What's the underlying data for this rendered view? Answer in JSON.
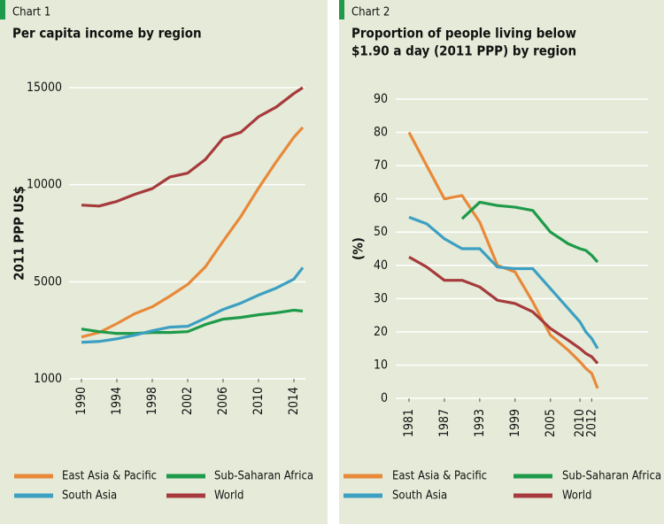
{
  "chart_data": [
    {
      "type": "line",
      "label": "Chart 1",
      "title": [
        "Per capita income by region"
      ],
      "ylabel": "2011 PPP US$",
      "x": [
        1990,
        1992,
        1994,
        1996,
        1998,
        2000,
        2002,
        2004,
        2006,
        2008,
        2010,
        2012,
        2014,
        2015
      ],
      "xlim": [
        1990,
        2015
      ],
      "xticks": [
        1990,
        1994,
        1998,
        2002,
        2006,
        2010,
        2014
      ],
      "ylim": [
        1000,
        15000
      ],
      "yticks": [
        1000,
        5000,
        10000,
        15000
      ],
      "grid": true,
      "series": [
        {
          "name": "East Asia & Pacific",
          "color": "#e8893a",
          "values": [
            2725,
            2910,
            3275,
            3680,
            3970,
            4410,
            4890,
            5770,
            7090,
            8360,
            9820,
            11180,
            12450,
            12950
          ]
        },
        {
          "name": "Sub-Saharan Africa",
          "color": "#1f9a4a",
          "values": [
            3055,
            2945,
            2870,
            2870,
            2910,
            2910,
            2945,
            3240,
            3460,
            3530,
            3640,
            3720,
            3830,
            3790
          ]
        },
        {
          "name": "South Asia",
          "color": "#3d9fc2",
          "values": [
            2505,
            2540,
            2650,
            2800,
            2980,
            3130,
            3165,
            3500,
            3860,
            4120,
            4450,
            4740,
            5140,
            5730
          ]
        },
        {
          "name": "World",
          "color": "#a63a3c",
          "values": [
            8950,
            8900,
            9140,
            9500,
            9800,
            10400,
            10600,
            11300,
            12400,
            12700,
            13500,
            14000,
            14700,
            15000
          ]
        }
      ]
    },
    {
      "type": "line",
      "label": "Chart 2",
      "title": [
        "Proportion of people living below",
        "$1.90 a day (2011 PPP) by region"
      ],
      "ylabel": "(%)",
      "x": [
        1981,
        1984,
        1987,
        1990,
        1993,
        1996,
        1999,
        2002,
        2005,
        2008,
        2010,
        2011,
        2012,
        2013
      ],
      "xlim": [
        1981,
        2013
      ],
      "xticks": [
        1981,
        1987,
        1993,
        1999,
        2005,
        2010,
        2012
      ],
      "ylim": [
        0,
        90
      ],
      "yticks": [
        0,
        10,
        20,
        30,
        40,
        50,
        60,
        70,
        80,
        90
      ],
      "grid": true,
      "series": [
        {
          "name": "East Asia & Pacific",
          "color": "#e8893a",
          "values": [
            80,
            70,
            60,
            61,
            53,
            40,
            38,
            29,
            19,
            14.5,
            11,
            9,
            7.5,
            3
          ]
        },
        {
          "name": "Sub-Saharan Africa",
          "color": "#1f9a4a",
          "values": [
            null,
            null,
            null,
            54,
            59,
            58,
            57.5,
            56.5,
            50,
            46.5,
            45,
            44.5,
            43,
            41
          ]
        },
        {
          "name": "South Asia",
          "color": "#3d9fc2",
          "values": [
            54.5,
            52.5,
            48,
            45,
            45,
            39.5,
            39,
            39,
            33,
            27,
            23,
            20,
            18,
            15
          ]
        },
        {
          "name": "World",
          "color": "#a63a3c",
          "values": [
            42.5,
            39.5,
            35.5,
            35.5,
            33.5,
            29.5,
            28.5,
            26,
            21,
            17.5,
            15,
            13.5,
            12.5,
            10.5
          ]
        }
      ]
    }
  ]
}
